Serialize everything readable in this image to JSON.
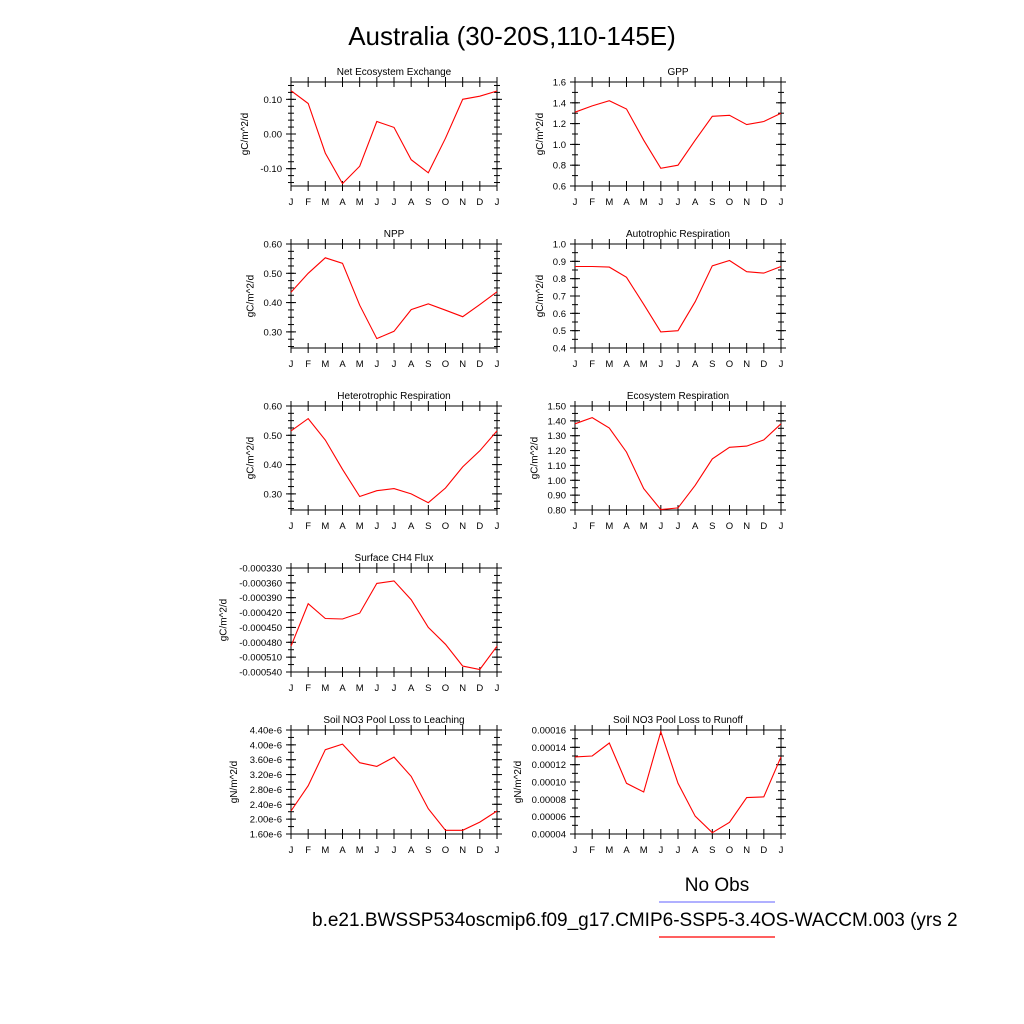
{
  "figure": {
    "title": "Australia (30-20S,110-145E)",
    "legend_no_obs": "No Obs",
    "legend_case": "b.e21.BWSSP534oscmip6.f09_g17.CMIP6-SSP5-3.4OS-WACCM.003 (yrs 2",
    "colors": {
      "model_line": "#ff0000",
      "obs_line": "#8080ff"
    }
  },
  "chart_data": [
    {
      "type": "line",
      "title": "Net Ecosystem Exchange",
      "ylabel": "gC/m^2/d",
      "categories": [
        "J",
        "F",
        "M",
        "A",
        "M",
        "J",
        "J",
        "A",
        "S",
        "O",
        "N",
        "D",
        "J"
      ],
      "ylim": [
        -0.15,
        0.15
      ],
      "yticks": [
        -0.1,
        0.0,
        0.1
      ],
      "yticklabels": [
        "-0.10",
        "0.00",
        "0.10"
      ],
      "yminor": 0.02,
      "series": [
        {
          "values": [
            0.125,
            0.088,
            -0.055,
            -0.143,
            -0.093,
            0.036,
            0.019,
            -0.074,
            -0.112,
            -0.012,
            0.1,
            0.109,
            0.124
          ]
        }
      ]
    },
    {
      "type": "line",
      "title": "GPP",
      "ylabel": "gC/m^2/d",
      "categories": [
        "J",
        "F",
        "M",
        "A",
        "M",
        "J",
        "J",
        "A",
        "S",
        "O",
        "N",
        "D",
        "J"
      ],
      "ylim": [
        0.6,
        1.6
      ],
      "yticks": [
        0.6,
        0.8,
        1.0,
        1.2,
        1.4,
        1.6
      ],
      "yticklabels": [
        "0.6",
        "0.8",
        "1.0",
        "1.2",
        "1.4",
        "1.6"
      ],
      "yminor": 0.1,
      "series": [
        {
          "values": [
            1.31,
            1.37,
            1.42,
            1.34,
            1.04,
            0.77,
            0.8,
            1.04,
            1.27,
            1.28,
            1.19,
            1.22,
            1.3
          ]
        }
      ]
    },
    {
      "type": "line",
      "title": "NPP",
      "ylabel": "gC/m^2/d",
      "categories": [
        "J",
        "F",
        "M",
        "A",
        "M",
        "J",
        "J",
        "A",
        "S",
        "O",
        "N",
        "D",
        "J"
      ],
      "ylim": [
        0.245,
        0.6
      ],
      "yticks": [
        0.3,
        0.4,
        0.5,
        0.6
      ],
      "yticklabels": [
        "0.30",
        "0.40",
        "0.50",
        "0.60"
      ],
      "yminor": 0.025,
      "series": [
        {
          "values": [
            0.435,
            0.5,
            0.553,
            0.534,
            0.391,
            0.277,
            0.302,
            0.376,
            0.396,
            0.374,
            0.352,
            0.393,
            0.437
          ]
        }
      ]
    },
    {
      "type": "line",
      "title": "Autotrophic Respiration",
      "ylabel": "gC/m^2/d",
      "categories": [
        "J",
        "F",
        "M",
        "A",
        "M",
        "J",
        "J",
        "A",
        "S",
        "O",
        "N",
        "D",
        "J"
      ],
      "ylim": [
        0.4,
        1.0
      ],
      "yticks": [
        0.4,
        0.5,
        0.6,
        0.7,
        0.8,
        0.9,
        1.0
      ],
      "yticklabels": [
        "0.4",
        "0.5",
        "0.6",
        "0.7",
        "0.8",
        "0.9",
        "1.0"
      ],
      "yminor": 0.05,
      "series": [
        {
          "values": [
            0.87,
            0.87,
            0.867,
            0.808,
            0.652,
            0.493,
            0.5,
            0.667,
            0.874,
            0.905,
            0.84,
            0.832,
            0.87
          ]
        }
      ]
    },
    {
      "type": "line",
      "title": "Heterotrophic Respiration",
      "ylabel": "gC/m^2/d",
      "categories": [
        "J",
        "F",
        "M",
        "A",
        "M",
        "J",
        "J",
        "A",
        "S",
        "O",
        "N",
        "D",
        "J"
      ],
      "ylim": [
        0.245,
        0.6
      ],
      "yticks": [
        0.3,
        0.4,
        0.5,
        0.6
      ],
      "yticklabels": [
        "0.30",
        "0.40",
        "0.50",
        "0.60"
      ],
      "yminor": 0.025,
      "series": [
        {
          "values": [
            0.515,
            0.557,
            0.484,
            0.384,
            0.291,
            0.311,
            0.318,
            0.3,
            0.27,
            0.32,
            0.392,
            0.447,
            0.515
          ]
        }
      ]
    },
    {
      "type": "line",
      "title": "Ecosystem Respiration",
      "ylabel": "gC/m^2/d",
      "categories": [
        "J",
        "F",
        "M",
        "A",
        "M",
        "J",
        "J",
        "A",
        "S",
        "O",
        "N",
        "D",
        "J"
      ],
      "ylim": [
        0.8,
        1.5
      ],
      "yticks": [
        0.8,
        0.9,
        1.0,
        1.1,
        1.2,
        1.3,
        1.4,
        1.5
      ],
      "yticklabels": [
        "0.80",
        "0.90",
        "1.00",
        "1.10",
        "1.20",
        "1.30",
        "1.40",
        "1.50"
      ],
      "yminor": 0.05,
      "series": [
        {
          "values": [
            1.38,
            1.422,
            1.352,
            1.19,
            0.944,
            0.803,
            0.814,
            0.966,
            1.144,
            1.222,
            1.23,
            1.272,
            1.38
          ]
        }
      ]
    },
    {
      "type": "line",
      "title": "Surface CH4 Flux",
      "ylabel": "gC/m^2/d",
      "categories": [
        "J",
        "F",
        "M",
        "A",
        "M",
        "J",
        "J",
        "A",
        "S",
        "O",
        "N",
        "D",
        "J"
      ],
      "ylim": [
        -0.00054,
        -0.00033
      ],
      "yticks": [
        -0.00054,
        -0.00051,
        -0.00048,
        -0.00045,
        -0.00042,
        -0.00039,
        -0.00036,
        -0.00033
      ],
      "yticklabels": [
        "-0.000540",
        "-0.000510",
        "-0.000480",
        "-0.000450",
        "-0.000420",
        "-0.000390",
        "-0.000360",
        "-0.000330"
      ],
      "yminor": 1.5e-05,
      "series": [
        {
          "values": [
            -0.000488,
            -0.000402,
            -0.000432,
            -0.000433,
            -0.000421,
            -0.000361,
            -0.000356,
            -0.000394,
            -0.00045,
            -0.000484,
            -0.000528,
            -0.000535,
            -0.000488
          ]
        }
      ]
    },
    {
      "type": "line",
      "title": "Soil NO3 Pool Loss to Leaching",
      "ylabel": "gN/m^2/d",
      "categories": [
        "J",
        "F",
        "M",
        "A",
        "M",
        "J",
        "J",
        "A",
        "S",
        "O",
        "N",
        "D",
        "J"
      ],
      "ylim": [
        1.6e-06,
        4.4e-06
      ],
      "yticks": [
        1.6e-06,
        2e-06,
        2.4e-06,
        2.8e-06,
        3.2e-06,
        3.6e-06,
        4e-06,
        4.4e-06
      ],
      "yticklabels": [
        "1.60e-6",
        "2.00e-6",
        "2.40e-6",
        "2.80e-6",
        "3.20e-6",
        "3.60e-6",
        "4.00e-6",
        "4.40e-6"
      ],
      "yminor": 2e-07,
      "series": [
        {
          "values": [
            2.22e-06,
            2.9e-06,
            3.87e-06,
            4.02e-06,
            3.52e-06,
            3.42e-06,
            3.67e-06,
            3.15e-06,
            2.28e-06,
            1.7e-06,
            1.7e-06,
            1.92e-06,
            2.22e-06
          ]
        }
      ]
    },
    {
      "type": "line",
      "title": "Soil NO3 Pool Loss to Runoff",
      "ylabel": "gN/m^2/d",
      "categories": [
        "J",
        "F",
        "M",
        "A",
        "M",
        "J",
        "J",
        "A",
        "S",
        "O",
        "N",
        "D",
        "J"
      ],
      "ylim": [
        4e-05,
        0.00016
      ],
      "yticks": [
        4e-05,
        6e-05,
        8e-05,
        0.0001,
        0.00012,
        0.00014,
        0.00016
      ],
      "yticklabels": [
        "0.00004",
        "0.00006",
        "0.00008",
        "0.00010",
        "0.00012",
        "0.00014",
        "0.00016"
      ],
      "yminor": 1e-05,
      "series": [
        {
          "values": [
            0.000129,
            0.00013,
            0.000145,
            9.85e-05,
            8.85e-05,
            0.000158,
            9.85e-05,
            6.05e-05,
            4.15e-05,
            5.35e-05,
            8.2e-05,
            8.28e-05,
            0.000129
          ]
        }
      ]
    }
  ]
}
